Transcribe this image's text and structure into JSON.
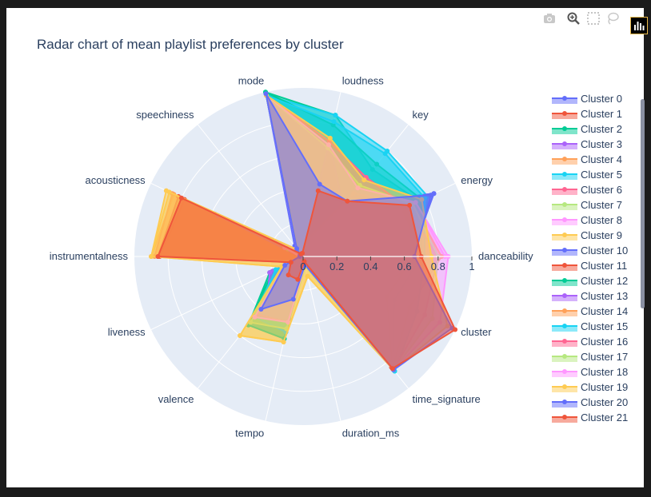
{
  "chart_data": {
    "type": "radar",
    "title": "Radar chart of mean playlist preferences by cluster",
    "axes": [
      "danceability",
      "energy",
      "key",
      "loudness",
      "mode",
      "speechiness",
      "acousticness",
      "instrumentalness",
      "liveness",
      "valence",
      "tempo",
      "duration_ms",
      "time_signature",
      "cluster"
    ],
    "radial_ticks": [
      "0",
      "0.2",
      "0.4",
      "0.6",
      "0.8",
      "1"
    ],
    "radial_range": [
      0,
      1
    ],
    "legend_placement": "right",
    "series": [
      {
        "name": "Cluster 0",
        "color": "#636efa",
        "values": [
          0.62,
          0.86,
          0.4,
          0.42,
          0.99,
          0.08,
          0.02,
          0.02,
          0.1,
          0.36,
          0.2,
          0.05,
          0.86,
          0.0
        ]
      },
      {
        "name": "Cluster 1",
        "color": "#ef553b",
        "values": [
          0.58,
          0.52,
          0.35,
          0.26,
          0.02,
          0.02,
          0.78,
          0.85,
          0.06,
          0.1,
          0.08,
          0.02,
          0.84,
          0.05
        ]
      },
      {
        "name": "Cluster 2",
        "color": "#00cc96",
        "values": [
          0.66,
          0.76,
          0.66,
          0.86,
          1.0,
          0.04,
          0.02,
          0.02,
          0.2,
          0.52,
          0.5,
          0.04,
          0.86,
          0.1
        ]
      },
      {
        "name": "Cluster 3",
        "color": "#ab63fa",
        "values": [
          0.62,
          0.58,
          0.36,
          0.72,
          0.02,
          0.05,
          0.58,
          0.02,
          0.2,
          0.38,
          0.3,
          0.04,
          0.85,
          0.15
        ]
      },
      {
        "name": "Cluster 4",
        "color": "#ffa15a",
        "values": [
          0.8,
          0.74,
          0.44,
          0.08,
          0.02,
          0.02,
          0.85,
          0.9,
          0.06,
          0.12,
          0.1,
          0.03,
          0.85,
          0.2
        ]
      },
      {
        "name": "Cluster 5",
        "color": "#19d3f3",
        "values": [
          0.7,
          0.82,
          0.8,
          0.86,
          0.98,
          0.04,
          0.02,
          0.02,
          0.18,
          0.46,
          0.46,
          0.04,
          0.87,
          0.25
        ]
      },
      {
        "name": "Cluster 6",
        "color": "#ff6692",
        "values": [
          0.78,
          0.7,
          0.6,
          0.7,
          0.98,
          0.05,
          0.05,
          0.02,
          0.14,
          0.44,
          0.38,
          0.05,
          0.86,
          0.3
        ]
      },
      {
        "name": "Cluster 7",
        "color": "#b6e880",
        "values": [
          0.8,
          0.72,
          0.54,
          0.66,
          0.98,
          0.05,
          0.1,
          0.02,
          0.14,
          0.5,
          0.44,
          0.06,
          0.86,
          0.35
        ]
      },
      {
        "name": "Cluster 8",
        "color": "#ff97ff",
        "values": [
          0.84,
          0.74,
          0.52,
          0.68,
          0.98,
          0.06,
          0.12,
          0.02,
          0.12,
          0.46,
          0.4,
          0.05,
          0.86,
          0.4
        ]
      },
      {
        "name": "Cluster 9",
        "color": "#fecb52",
        "values": [
          0.76,
          0.78,
          0.58,
          0.72,
          0.98,
          0.05,
          0.88,
          0.9,
          0.14,
          0.6,
          0.52,
          0.12,
          0.86,
          0.45
        ]
      },
      {
        "name": "Cluster 10",
        "color": "#636efa",
        "values": [
          0.64,
          0.86,
          0.4,
          0.42,
          0.99,
          0.06,
          0.02,
          0.02,
          0.12,
          0.4,
          0.24,
          0.05,
          0.86,
          0.5
        ]
      },
      {
        "name": "Cluster 11",
        "color": "#ef553b",
        "values": [
          0.66,
          0.72,
          0.4,
          0.4,
          0.02,
          0.02,
          0.82,
          0.86,
          0.08,
          0.14,
          0.14,
          0.03,
          0.85,
          0.55
        ]
      },
      {
        "name": "Cluster 12",
        "color": "#00cc96",
        "values": [
          0.7,
          0.78,
          0.7,
          0.8,
          1.0,
          0.05,
          0.02,
          0.02,
          0.22,
          0.52,
          0.5,
          0.04,
          0.86,
          0.6
        ]
      },
      {
        "name": "Cluster 13",
        "color": "#ab63fa",
        "values": [
          0.7,
          0.64,
          0.38,
          0.7,
          0.02,
          0.05,
          0.56,
          0.02,
          0.22,
          0.34,
          0.3,
          0.04,
          0.85,
          0.65
        ]
      },
      {
        "name": "Cluster 14",
        "color": "#ffa15a",
        "values": [
          0.82,
          0.72,
          0.48,
          0.1,
          0.02,
          0.02,
          0.86,
          0.88,
          0.06,
          0.14,
          0.12,
          0.03,
          0.85,
          0.7
        ]
      },
      {
        "name": "Cluster 15",
        "color": "#19d3f3",
        "values": [
          0.72,
          0.8,
          0.78,
          0.82,
          0.98,
          0.05,
          0.02,
          0.02,
          0.18,
          0.46,
          0.46,
          0.04,
          0.87,
          0.75
        ]
      },
      {
        "name": "Cluster 16",
        "color": "#ff6692",
        "values": [
          0.8,
          0.68,
          0.6,
          0.7,
          0.98,
          0.05,
          0.06,
          0.02,
          0.14,
          0.44,
          0.4,
          0.05,
          0.86,
          0.8
        ]
      },
      {
        "name": "Cluster 17",
        "color": "#b6e880",
        "values": [
          0.8,
          0.72,
          0.54,
          0.66,
          0.98,
          0.05,
          0.1,
          0.02,
          0.14,
          0.5,
          0.44,
          0.06,
          0.86,
          0.85
        ]
      },
      {
        "name": "Cluster 18",
        "color": "#ff97ff",
        "values": [
          0.86,
          0.74,
          0.52,
          0.68,
          0.98,
          0.06,
          0.12,
          0.02,
          0.12,
          0.46,
          0.4,
          0.05,
          0.86,
          0.9
        ]
      },
      {
        "name": "Cluster 19",
        "color": "#fecb52",
        "values": [
          0.76,
          0.78,
          0.58,
          0.72,
          0.98,
          0.05,
          0.9,
          0.9,
          0.14,
          0.6,
          0.52,
          0.12,
          0.86,
          0.95
        ]
      },
      {
        "name": "Cluster 20",
        "color": "#636efa",
        "values": [
          0.66,
          0.84,
          0.42,
          0.44,
          0.99,
          0.06,
          0.02,
          0.02,
          0.12,
          0.4,
          0.26,
          0.05,
          0.86,
          0.98
        ]
      },
      {
        "name": "Cluster 21",
        "color": "#ef553b",
        "values": [
          0.7,
          0.7,
          0.42,
          0.4,
          0.02,
          0.02,
          0.8,
          0.86,
          0.08,
          0.14,
          0.14,
          0.03,
          0.85,
          1.0
        ]
      }
    ]
  },
  "toolbar": {
    "buttons": [
      {
        "icon": "camera-icon"
      },
      {
        "icon": "zoom-icon"
      },
      {
        "icon": "box-select-icon"
      },
      {
        "icon": "lasso-icon"
      }
    ],
    "logo_icon": "plotly-logo-icon"
  }
}
